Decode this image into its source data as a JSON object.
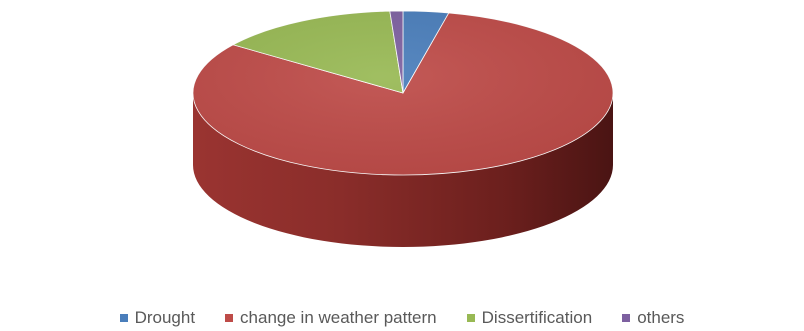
{
  "chart_data": {
    "type": "pie",
    "title": "",
    "categories": [
      "Drought",
      "change in weather pattern",
      "Dissertification",
      "others"
    ],
    "values": [
      3.5,
      81.5,
      14.0,
      1.0
    ],
    "colors": [
      "#4a7ebb",
      "#be4b48",
      "#98b954",
      "#7d60a0"
    ],
    "legend_position": "bottom",
    "style": "3d"
  },
  "legend": {
    "items": [
      {
        "label": "Drought",
        "color": "#4a7ebb"
      },
      {
        "label": "change in weather pattern",
        "color": "#be4b48"
      },
      {
        "label": "Dissertification",
        "color": "#98b954"
      },
      {
        "label": "others",
        "color": "#7d60a0"
      }
    ]
  }
}
